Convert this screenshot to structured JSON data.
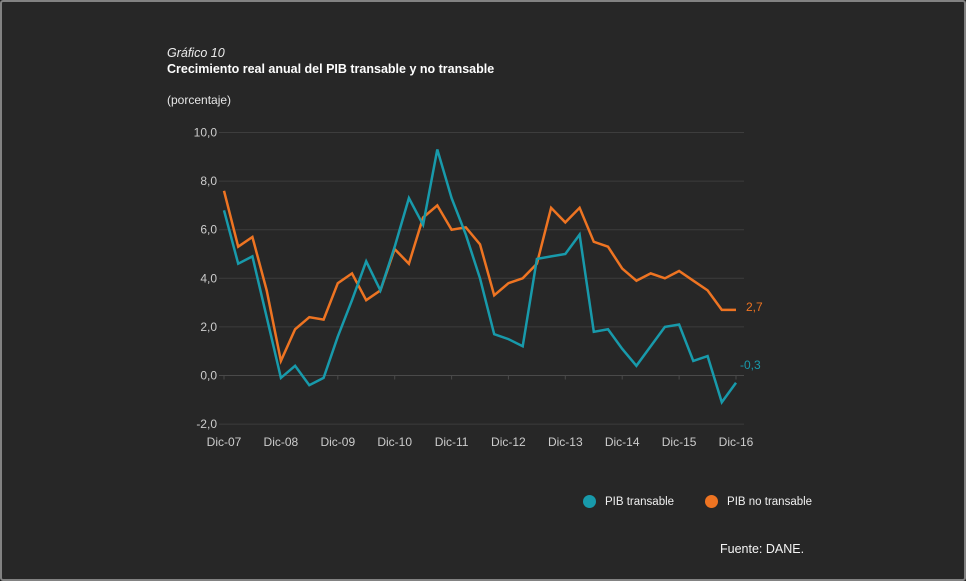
{
  "header": {
    "figure_label": "Gráfico 10",
    "title": "Crecimiento real anual del PIB transable y no transable",
    "unit": "(porcentaje)"
  },
  "footer": {
    "source": "Fuente: DANE."
  },
  "colors": {
    "background": "#272727",
    "border": "#828282",
    "gridline": "#3d3d3d",
    "zero_line": "#4a4a4a",
    "axis_text": "#cccccc",
    "pib_transable": "#189AAB",
    "pib_no_transable": "#EE7422"
  },
  "chart_data": {
    "type": "line",
    "title": "Crecimiento real anual del PIB transable y no transable",
    "xlabel": "",
    "ylabel": "(porcentaje)",
    "ylim": [
      -2,
      10
    ],
    "grid": "horizontal",
    "legend_position": "bottom-right",
    "x": [
      "Dic-07",
      "Mar-08",
      "Jun-08",
      "Sep-08",
      "Dic-08",
      "Mar-09",
      "Jun-09",
      "Sep-09",
      "Dic-09",
      "Mar-10",
      "Jun-10",
      "Sep-10",
      "Dic-10",
      "Mar-11",
      "Jun-11",
      "Sep-11",
      "Dic-11",
      "Mar-12",
      "Jun-12",
      "Sep-12",
      "Dic-12",
      "Mar-13",
      "Jun-13",
      "Sep-13",
      "Dic-13",
      "Mar-14",
      "Jun-14",
      "Sep-14",
      "Dic-14",
      "Mar-15",
      "Jun-15",
      "Sep-15",
      "Dic-15",
      "Mar-16",
      "Jun-16",
      "Sep-16",
      "Dic-16"
    ],
    "xticks": [
      "Dic-07",
      "Dic-08",
      "Dic-09",
      "Dic-10",
      "Dic-11",
      "Dic-12",
      "Dic-13",
      "Dic-14",
      "Dic-15",
      "Dic-16"
    ],
    "yticks": {
      "values": [
        10,
        8,
        6,
        4,
        2,
        0,
        -2
      ],
      "labels": [
        "10,0",
        "8,0",
        "6,0",
        "4,0",
        "2,0",
        "0,0",
        "-2,0"
      ]
    },
    "series": [
      {
        "name": "PIB transable",
        "color": "#189AAB",
        "end_label": "-0,3",
        "values": [
          6.8,
          4.6,
          4.9,
          2.4,
          -0.1,
          0.4,
          -0.4,
          -0.1,
          1.6,
          3.1,
          4.7,
          3.5,
          5.3,
          7.3,
          6.2,
          9.3,
          7.3,
          5.8,
          4.0,
          1.7,
          1.5,
          1.2,
          4.8,
          4.9,
          5.0,
          5.8,
          1.8,
          1.9,
          1.1,
          0.4,
          1.2,
          2.0,
          2.1,
          0.6,
          0.8,
          -1.1,
          -0.3
        ]
      },
      {
        "name": "PIB no transable",
        "color": "#EE7422",
        "end_label": "2,7",
        "values": [
          7.6,
          5.3,
          5.7,
          3.5,
          0.6,
          1.9,
          2.4,
          2.3,
          3.8,
          4.2,
          3.1,
          3.5,
          5.2,
          4.6,
          6.5,
          7.0,
          6.0,
          6.1,
          5.4,
          3.3,
          3.8,
          4.0,
          4.6,
          6.9,
          6.3,
          6.9,
          5.5,
          5.3,
          4.4,
          3.9,
          4.2,
          4.0,
          4.3,
          3.9,
          3.5,
          2.7,
          2.7
        ]
      }
    ]
  }
}
